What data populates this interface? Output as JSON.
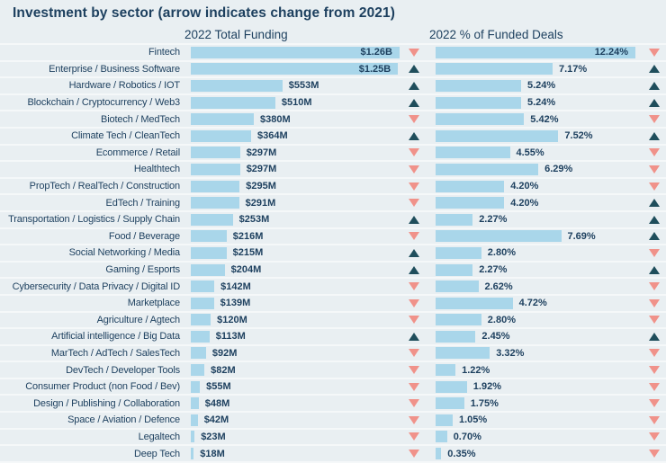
{
  "title": "Investment by sector (arrow indicates change from 2021)",
  "columns": {
    "funding_header": "2022 Total Funding",
    "deals_header": "2022 % of Funded Deals"
  },
  "colors": {
    "background": "#e9eff2",
    "bar": "#a9d6ea",
    "text": "#1c3f5e",
    "arrow_up": "#1f4e5c",
    "arrow_down": "#f0928a",
    "row_separator": "rgba(255,255,255,0.55)"
  },
  "chart_data": {
    "type": "bar",
    "orientation": "horizontal",
    "title": "Investment by sector (arrow indicates change from 2021)",
    "series": [
      {
        "name": "2022 Total Funding",
        "unit": "USD millions"
      },
      {
        "name": "2022 % of Funded Deals",
        "unit": "%"
      }
    ],
    "funding_axis_max_musd": 1260,
    "deals_axis_max_pct": 12.24,
    "rows": [
      {
        "sector": "Fintech",
        "funding_label": "$1.26B",
        "funding_musd": 1260,
        "funding_change": "down",
        "deals_label": "12.24%",
        "deals_pct": 12.24,
        "deals_change": "down"
      },
      {
        "sector": "Enterprise / Business Software",
        "funding_label": "$1.25B",
        "funding_musd": 1250,
        "funding_change": "up",
        "deals_label": "7.17%",
        "deals_pct": 7.17,
        "deals_change": "up"
      },
      {
        "sector": "Hardware / Robotics / IOT",
        "funding_label": "$553M",
        "funding_musd": 553,
        "funding_change": "up",
        "deals_label": "5.24%",
        "deals_pct": 5.24,
        "deals_change": "up"
      },
      {
        "sector": "Blockchain / Cryptocurrency / Web3",
        "funding_label": "$510M",
        "funding_musd": 510,
        "funding_change": "up",
        "deals_label": "5.24%",
        "deals_pct": 5.24,
        "deals_change": "up"
      },
      {
        "sector": "Biotech / MedTech",
        "funding_label": "$380M",
        "funding_musd": 380,
        "funding_change": "down",
        "deals_label": "5.42%",
        "deals_pct": 5.42,
        "deals_change": "down"
      },
      {
        "sector": "Climate Tech / CleanTech",
        "funding_label": "$364M",
        "funding_musd": 364,
        "funding_change": "up",
        "deals_label": "7.52%",
        "deals_pct": 7.52,
        "deals_change": "up"
      },
      {
        "sector": "Ecommerce / Retail",
        "funding_label": "$297M",
        "funding_musd": 297,
        "funding_change": "down",
        "deals_label": "4.55%",
        "deals_pct": 4.55,
        "deals_change": "down"
      },
      {
        "sector": "Healthtech",
        "funding_label": "$297M",
        "funding_musd": 297,
        "funding_change": "down",
        "deals_label": "6.29%",
        "deals_pct": 6.29,
        "deals_change": "down"
      },
      {
        "sector": "PropTech / RealTech / Construction",
        "funding_label": "$295M",
        "funding_musd": 295,
        "funding_change": "down",
        "deals_label": "4.20%",
        "deals_pct": 4.2,
        "deals_change": "down"
      },
      {
        "sector": "EdTech / Training",
        "funding_label": "$291M",
        "funding_musd": 291,
        "funding_change": "down",
        "deals_label": "4.20%",
        "deals_pct": 4.2,
        "deals_change": "up"
      },
      {
        "sector": "Transportation / Logistics / Supply Chain",
        "funding_label": "$253M",
        "funding_musd": 253,
        "funding_change": "up",
        "deals_label": "2.27%",
        "deals_pct": 2.27,
        "deals_change": "up"
      },
      {
        "sector": "Food / Beverage",
        "funding_label": "$216M",
        "funding_musd": 216,
        "funding_change": "down",
        "deals_label": "7.69%",
        "deals_pct": 7.69,
        "deals_change": "up"
      },
      {
        "sector": "Social Networking / Media",
        "funding_label": "$215M",
        "funding_musd": 215,
        "funding_change": "up",
        "deals_label": "2.80%",
        "deals_pct": 2.8,
        "deals_change": "down"
      },
      {
        "sector": "Gaming / Esports",
        "funding_label": "$204M",
        "funding_musd": 204,
        "funding_change": "up",
        "deals_label": "2.27%",
        "deals_pct": 2.27,
        "deals_change": "up"
      },
      {
        "sector": "Cybersecurity / Data Privacy / Digital ID",
        "funding_label": "$142M",
        "funding_musd": 142,
        "funding_change": "down",
        "deals_label": "2.62%",
        "deals_pct": 2.62,
        "deals_change": "down"
      },
      {
        "sector": "Marketplace",
        "funding_label": "$139M",
        "funding_musd": 139,
        "funding_change": "down",
        "deals_label": "4.72%",
        "deals_pct": 4.72,
        "deals_change": "down"
      },
      {
        "sector": "Agriculture / Agtech",
        "funding_label": "$120M",
        "funding_musd": 120,
        "funding_change": "down",
        "deals_label": "2.80%",
        "deals_pct": 2.8,
        "deals_change": "down"
      },
      {
        "sector": "Artificial intelligence / Big Data",
        "funding_label": "$113M",
        "funding_musd": 113,
        "funding_change": "up",
        "deals_label": "2.45%",
        "deals_pct": 2.45,
        "deals_change": "up"
      },
      {
        "sector": "MarTech / AdTech / SalesTech",
        "funding_label": "$92M",
        "funding_musd": 92,
        "funding_change": "down",
        "deals_label": "3.32%",
        "deals_pct": 3.32,
        "deals_change": "down"
      },
      {
        "sector": "DevTech / Developer Tools",
        "funding_label": "$82M",
        "funding_musd": 82,
        "funding_change": "down",
        "deals_label": "1.22%",
        "deals_pct": 1.22,
        "deals_change": "down"
      },
      {
        "sector": "Consumer Product (non Food / Bev)",
        "funding_label": "$55M",
        "funding_musd": 55,
        "funding_change": "down",
        "deals_label": "1.92%",
        "deals_pct": 1.92,
        "deals_change": "down"
      },
      {
        "sector": "Design / Publishing / Collaboration",
        "funding_label": "$48M",
        "funding_musd": 48,
        "funding_change": "down",
        "deals_label": "1.75%",
        "deals_pct": 1.75,
        "deals_change": "down"
      },
      {
        "sector": "Space / Aviation / Defence",
        "funding_label": "$42M",
        "funding_musd": 42,
        "funding_change": "down",
        "deals_label": "1.05%",
        "deals_pct": 1.05,
        "deals_change": "down"
      },
      {
        "sector": "Legaltech",
        "funding_label": "$23M",
        "funding_musd": 23,
        "funding_change": "down",
        "deals_label": "0.70%",
        "deals_pct": 0.7,
        "deals_change": "down"
      },
      {
        "sector": "Deep Tech",
        "funding_label": "$18M",
        "funding_musd": 18,
        "funding_change": "down",
        "deals_label": "0.35%",
        "deals_pct": 0.35,
        "deals_change": "down"
      }
    ]
  }
}
